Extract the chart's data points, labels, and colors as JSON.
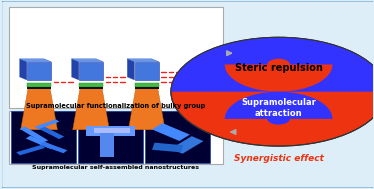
{
  "background_color": "#ddeef8",
  "border_color": "#5599cc",
  "yin_yang_blue": "#3333ff",
  "yin_yang_red": "#ee3311",
  "steric_text": "Steric repulsion",
  "attraction_text": "Supramolecular\nattraction",
  "synergistic_text": "Synergistic effect",
  "top_caption": "Supramolecular functionalization of bulky group",
  "bottom_caption": "Supramolecular self-assembled nanostructures",
  "cube_blue": "#4477dd",
  "cube_dark": "#2244aa",
  "cube_top": "#6699ee",
  "pillar_orange": "#ee7722",
  "band_black": "#111111",
  "band_green": "#44bb44",
  "dot_red": "#ee2222",
  "panel_dark": "#000033",
  "rod_blue1": "#4488ff",
  "rod_blue2": "#2266dd",
  "rod_blue3": "#3377ee"
}
